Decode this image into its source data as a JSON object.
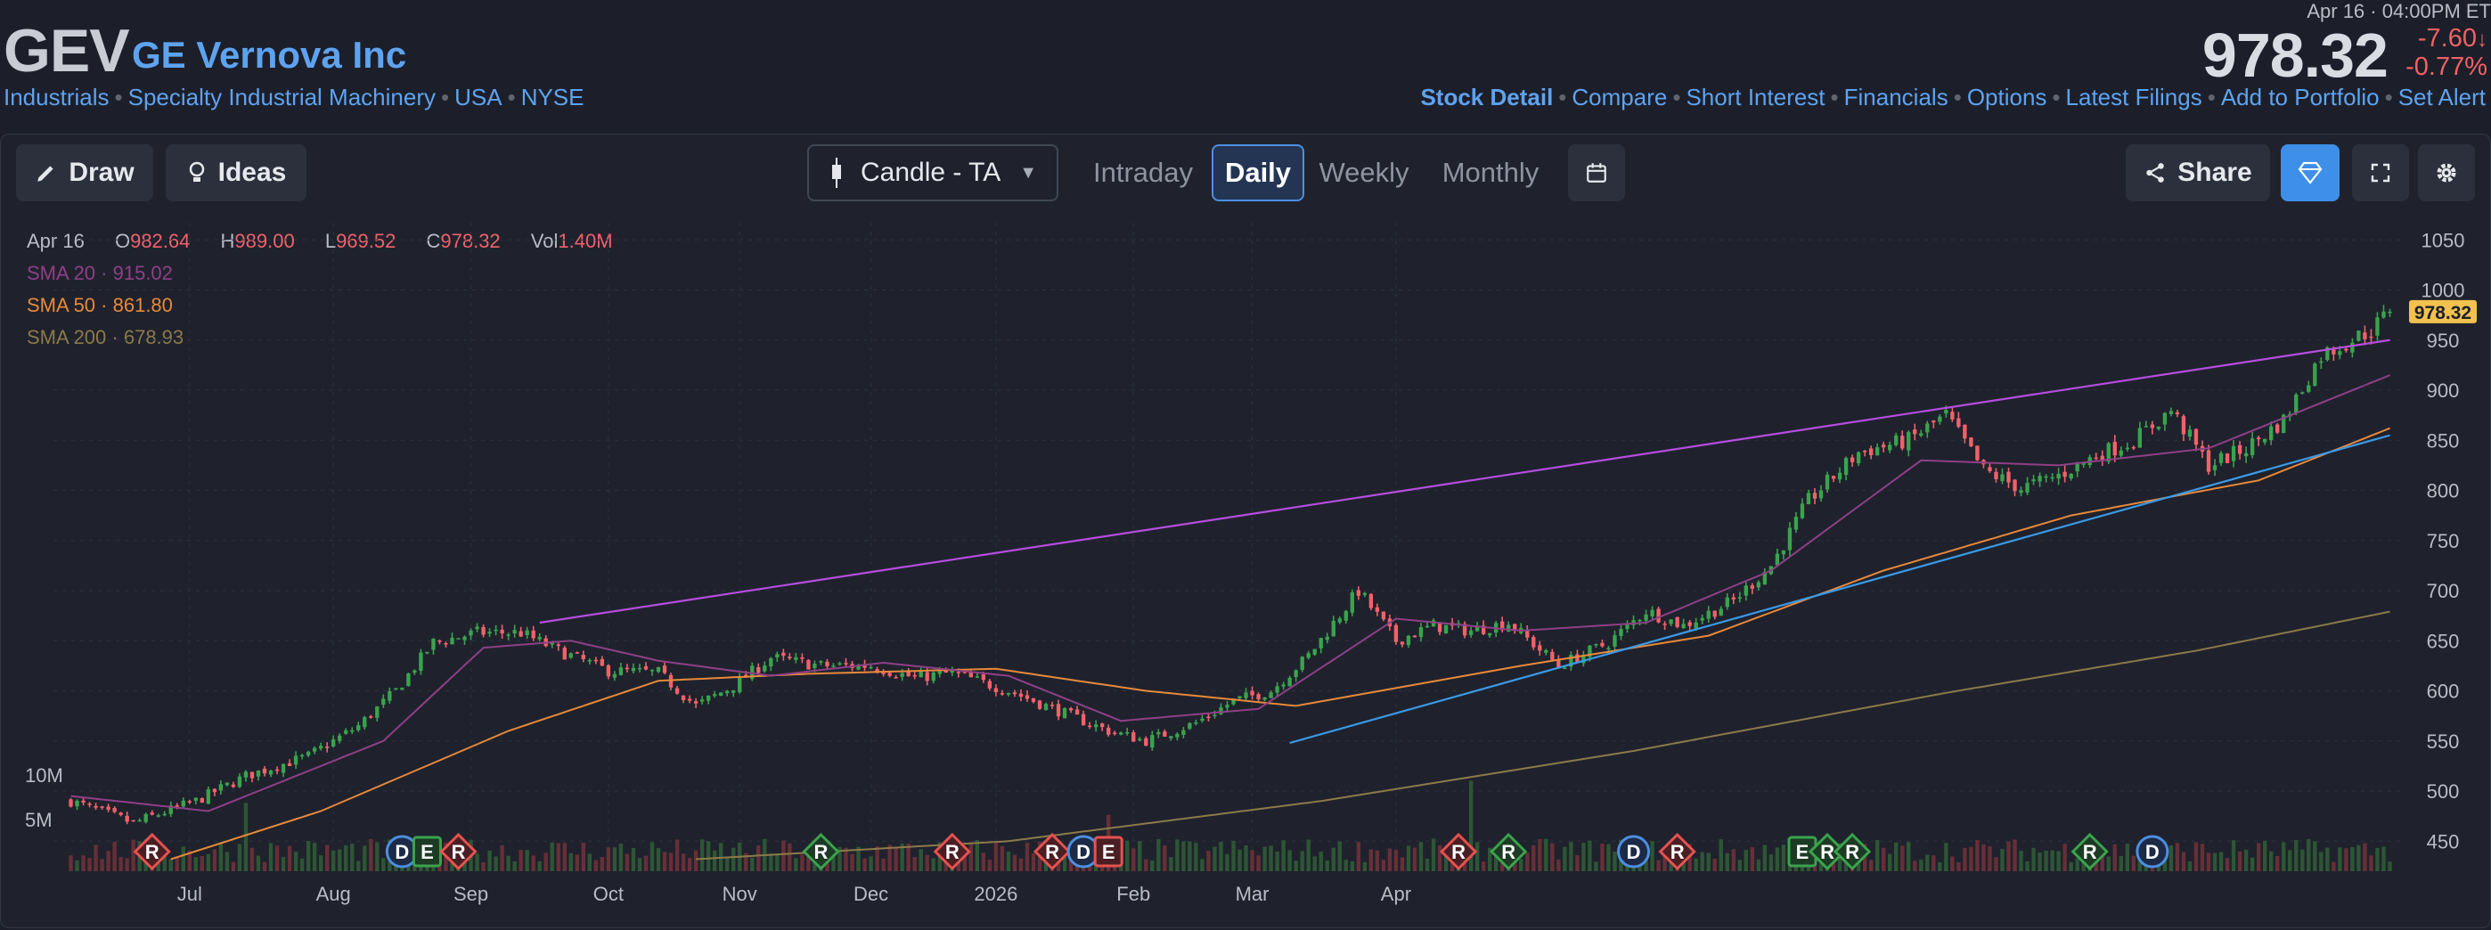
{
  "header": {
    "symbol": "GEV",
    "company": "GE Vernova Inc",
    "tags": [
      "Industrials",
      "Specialty Industrial Machinery",
      "USA",
      "NYSE"
    ],
    "datetime": "Apr 16 · 04:00PM ET",
    "price": "978.32",
    "change": "-7.60",
    "change_pct": "-0.77%",
    "links": [
      "Stock Detail",
      "Compare",
      "Short Interest",
      "Financials",
      "Options",
      "Latest Filings",
      "Add to Portfolio",
      "Set Alert"
    ]
  },
  "toolbar": {
    "draw": "Draw",
    "ideas": "Ideas",
    "chart_type": "Candle - TA",
    "timeframes": [
      "Intraday",
      "Daily",
      "Weekly",
      "Monthly"
    ],
    "active_timeframe": "Daily",
    "share": "Share"
  },
  "ohlc": {
    "date": "Apr 16",
    "o_label": "O",
    "o": "982.64",
    "h_label": "H",
    "h": "989.00",
    "l_label": "L",
    "l": "969.52",
    "c_label": "C",
    "c": "978.32",
    "vol_label": "Vol",
    "vol": "1.40M"
  },
  "indicators": [
    {
      "name": "SMA 20",
      "value": "915.02",
      "color": "#8f3f87"
    },
    {
      "name": "SMA 50",
      "value": "861.80",
      "color": "#e8893a"
    },
    {
      "name": "SMA 200",
      "value": "678.93",
      "color": "#8c7a48"
    }
  ],
  "colors": {
    "up": "#3aa34d",
    "down": "#f0626a",
    "accent": "#5ea3f0",
    "channel": "#b64de0",
    "trend": "#3a9ae8"
  },
  "chart_data": {
    "type": "candlestick",
    "title": "GEV",
    "ylim": [
      420,
      1060
    ],
    "y_ticks": [
      450,
      500,
      550,
      600,
      650,
      700,
      750,
      800,
      850,
      900,
      950,
      1000,
      1050
    ],
    "x_ticks": [
      "Jul",
      "Aug",
      "Sep",
      "Oct",
      "Nov",
      "Dec",
      "2026",
      "Feb",
      "Mar",
      "Apr"
    ],
    "last_price_label": "978.32",
    "volume_ticks": [
      "10M",
      "5M"
    ],
    "anchors": [
      [
        0,
        490
      ],
      [
        10,
        468
      ],
      [
        20,
        490
      ],
      [
        28,
        515
      ],
      [
        38,
        535
      ],
      [
        46,
        565
      ],
      [
        52,
        600
      ],
      [
        58,
        648
      ],
      [
        65,
        658
      ],
      [
        72,
        658
      ],
      [
        78,
        640
      ],
      [
        86,
        620
      ],
      [
        94,
        618
      ],
      [
        100,
        585
      ],
      [
        106,
        605
      ],
      [
        112,
        633
      ],
      [
        120,
        625
      ],
      [
        128,
        625
      ],
      [
        135,
        613
      ],
      [
        141,
        618
      ],
      [
        150,
        600
      ],
      [
        158,
        580
      ],
      [
        166,
        560
      ],
      [
        172,
        550
      ],
      [
        180,
        568
      ],
      [
        186,
        590
      ],
      [
        192,
        600
      ],
      [
        198,
        635
      ],
      [
        206,
        700
      ],
      [
        212,
        650
      ],
      [
        218,
        665
      ],
      [
        224,
        660
      ],
      [
        230,
        668
      ],
      [
        238,
        625
      ],
      [
        246,
        648
      ],
      [
        252,
        680
      ],
      [
        258,
        665
      ],
      [
        266,
        690
      ],
      [
        272,
        725
      ],
      [
        278,
        790
      ],
      [
        286,
        838
      ],
      [
        294,
        850
      ],
      [
        300,
        875
      ],
      [
        306,
        820
      ],
      [
        312,
        802
      ],
      [
        318,
        815
      ],
      [
        324,
        835
      ],
      [
        330,
        850
      ],
      [
        336,
        880
      ],
      [
        342,
        825
      ],
      [
        348,
        842
      ],
      [
        354,
        870
      ],
      [
        360,
        935
      ],
      [
        368,
        960
      ],
      [
        371,
        978.32
      ]
    ],
    "sma20": [
      [
        0,
        495
      ],
      [
        22,
        480
      ],
      [
        50,
        550
      ],
      [
        66,
        643
      ],
      [
        80,
        650
      ],
      [
        94,
        630
      ],
      [
        112,
        615
      ],
      [
        130,
        628
      ],
      [
        150,
        615
      ],
      [
        168,
        570
      ],
      [
        190,
        582
      ],
      [
        212,
        672
      ],
      [
        232,
        660
      ],
      [
        252,
        668
      ],
      [
        272,
        720
      ],
      [
        296,
        830
      ],
      [
        318,
        825
      ],
      [
        342,
        842
      ],
      [
        371,
        915
      ]
    ],
    "sma50": [
      [
        16,
        432
      ],
      [
        40,
        480
      ],
      [
        70,
        560
      ],
      [
        94,
        610
      ],
      [
        118,
        617
      ],
      [
        148,
        622
      ],
      [
        172,
        600
      ],
      [
        196,
        585
      ],
      [
        232,
        625
      ],
      [
        262,
        655
      ],
      [
        290,
        720
      ],
      [
        320,
        775
      ],
      [
        350,
        810
      ],
      [
        371,
        862
      ]
    ],
    "sma200": [
      [
        100,
        432
      ],
      [
        150,
        450
      ],
      [
        200,
        490
      ],
      [
        250,
        540
      ],
      [
        300,
        598
      ],
      [
        340,
        640
      ],
      [
        371,
        679
      ]
    ],
    "channel_line": [
      [
        75,
        668
      ],
      [
        371,
        950
      ]
    ],
    "trend_line": [
      [
        195,
        548
      ],
      [
        371,
        855
      ]
    ],
    "volume": {
      "ymax": 12,
      "spikes": [
        [
          28,
          9.2
        ],
        [
          166,
          7.6
        ],
        [
          224,
          12.2
        ]
      ]
    },
    "events": [
      {
        "x": 13,
        "label": "R",
        "kind": "r"
      },
      {
        "x": 53,
        "label": "D",
        "kind": "d"
      },
      {
        "x": 57,
        "label": "E",
        "kind": "e"
      },
      {
        "x": 62,
        "label": "R",
        "kind": "r"
      },
      {
        "x": 120,
        "label": "R",
        "kind": "rg"
      },
      {
        "x": 141,
        "label": "R",
        "kind": "r"
      },
      {
        "x": 157,
        "label": "R",
        "kind": "r"
      },
      {
        "x": 162,
        "label": "D",
        "kind": "d"
      },
      {
        "x": 166,
        "label": "E",
        "kind": "er"
      },
      {
        "x": 222,
        "label": "R",
        "kind": "r"
      },
      {
        "x": 230,
        "label": "R",
        "kind": "rg"
      },
      {
        "x": 250,
        "label": "D",
        "kind": "d"
      },
      {
        "x": 257,
        "label": "R",
        "kind": "r"
      },
      {
        "x": 277,
        "label": "E",
        "kind": "e"
      },
      {
        "x": 281,
        "label": "R",
        "kind": "rg"
      },
      {
        "x": 285,
        "label": "R",
        "kind": "rg"
      },
      {
        "x": 323,
        "label": "R",
        "kind": "rg"
      },
      {
        "x": 333,
        "label": "D",
        "kind": "d"
      }
    ]
  }
}
